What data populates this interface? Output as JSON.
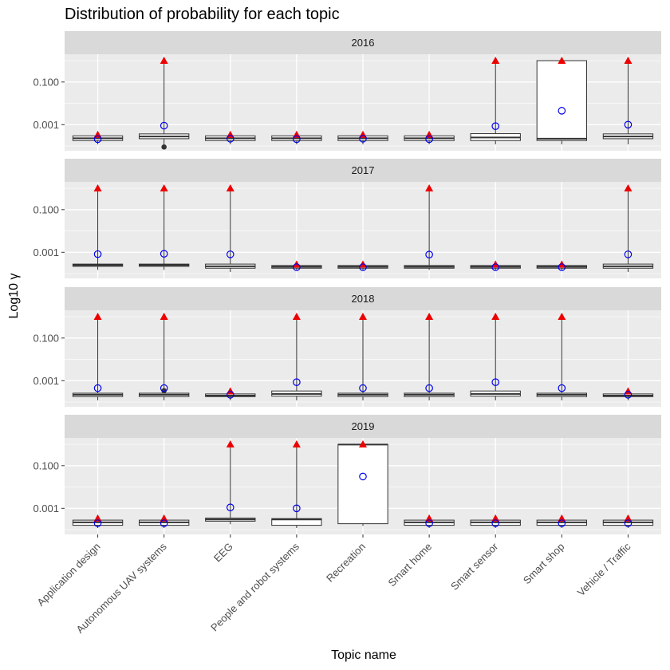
{
  "chart_data": {
    "type": "boxplot",
    "title": "Distribution of probability for each topic",
    "xlabel": "Topic name",
    "ylabel": "Log10 γ",
    "y_scale": "log10",
    "y_range": [
      6e-05,
      2.0
    ],
    "y_ticks": [
      {
        "value": 0.1,
        "label": "0.100"
      },
      {
        "value": 0.001,
        "label": "0.001"
      }
    ],
    "categories": [
      "Application design",
      "Autonomous UAV systems",
      "EEG",
      "People and robot systems",
      "Recreation",
      "Smart home",
      "Smart sensor",
      "Smart shop",
      "Vehicle / Traffic"
    ],
    "legend": "none",
    "colors": {
      "panel_bg": "#ebebeb",
      "strip_bg": "#d9d9d9",
      "grid": "#ffffff",
      "box_fill": "#ffffff",
      "box_line": "#333333",
      "mean_marker": "#0000ee",
      "max_marker": "#ee0000",
      "outlier": "#333333"
    },
    "facets": [
      {
        "label": "2016",
        "boxes": [
          {
            "q1": 0.00018,
            "median": 0.00023,
            "q3": 0.0003,
            "whisker_low": 0.00012,
            "whisker_high": 0.00035,
            "mean": 0.00021,
            "max": 0.00034
          },
          {
            "q1": 0.00022,
            "median": 0.00028,
            "q3": 0.00037,
            "whisker_low": 0.00012,
            "whisker_high": 1.0,
            "mean": 0.0009,
            "max": 1.0,
            "outliers": [
              9e-05
            ]
          },
          {
            "q1": 0.00018,
            "median": 0.00023,
            "q3": 0.0003,
            "whisker_low": 0.00012,
            "whisker_high": 0.00035,
            "mean": 0.00022,
            "max": 0.00034
          },
          {
            "q1": 0.00018,
            "median": 0.00023,
            "q3": 0.0003,
            "whisker_low": 0.00012,
            "whisker_high": 0.00035,
            "mean": 0.00021,
            "max": 0.00034
          },
          {
            "q1": 0.00018,
            "median": 0.00023,
            "q3": 0.0003,
            "whisker_low": 0.00012,
            "whisker_high": 0.00035,
            "mean": 0.00022,
            "max": 0.00034
          },
          {
            "q1": 0.00018,
            "median": 0.00023,
            "q3": 0.0003,
            "whisker_low": 0.00012,
            "whisker_high": 0.00035,
            "mean": 0.00021,
            "max": 0.00034
          },
          {
            "q1": 0.00018,
            "median": 0.00025,
            "q3": 0.00038,
            "whisker_low": 0.00012,
            "whisker_high": 1.0,
            "mean": 0.00085,
            "max": 1.0
          },
          {
            "q1": 0.00018,
            "median": 0.00022,
            "q3": 1.0,
            "whisker_low": 0.00012,
            "whisker_high": 1.0,
            "mean": 0.0045,
            "max": 1.0
          },
          {
            "q1": 0.00022,
            "median": 0.00028,
            "q3": 0.00037,
            "whisker_low": 0.00012,
            "whisker_high": 1.0,
            "mean": 0.001,
            "max": 1.0
          }
        ]
      },
      {
        "label": "2017",
        "boxes": [
          {
            "q1": 0.00022,
            "median": 0.00025,
            "q3": 0.00028,
            "whisker_low": 0.00015,
            "whisker_high": 1.0,
            "mean": 0.00082,
            "max": 1.0
          },
          {
            "q1": 0.00022,
            "median": 0.00025,
            "q3": 0.00028,
            "whisker_low": 0.00015,
            "whisker_high": 1.0,
            "mean": 0.00085,
            "max": 1.0
          },
          {
            "q1": 0.00018,
            "median": 0.00022,
            "q3": 0.00028,
            "whisker_low": 0.00012,
            "whisker_high": 1.0,
            "mean": 0.0008,
            "max": 1.0
          },
          {
            "q1": 0.00018,
            "median": 0.00021,
            "q3": 0.00024,
            "whisker_low": 0.00015,
            "whisker_high": 0.00028,
            "mean": 0.0002,
            "max": 0.00027
          },
          {
            "q1": 0.00018,
            "median": 0.00021,
            "q3": 0.00024,
            "whisker_low": 0.00015,
            "whisker_high": 0.00028,
            "mean": 0.0002,
            "max": 0.00027
          },
          {
            "q1": 0.00018,
            "median": 0.00021,
            "q3": 0.00024,
            "whisker_low": 0.00015,
            "whisker_high": 1.0,
            "mean": 0.00078,
            "max": 1.0
          },
          {
            "q1": 0.00018,
            "median": 0.00021,
            "q3": 0.00024,
            "whisker_low": 0.00015,
            "whisker_high": 0.00028,
            "mean": 0.0002,
            "max": 0.00027
          },
          {
            "q1": 0.00018,
            "median": 0.00021,
            "q3": 0.00024,
            "whisker_low": 0.00015,
            "whisker_high": 0.00028,
            "mean": 0.0002,
            "max": 0.00027
          },
          {
            "q1": 0.00018,
            "median": 0.00022,
            "q3": 0.00028,
            "whisker_low": 0.00012,
            "whisker_high": 1.0,
            "mean": 0.0008,
            "max": 1.0
          }
        ]
      },
      {
        "label": "2018",
        "boxes": [
          {
            "q1": 0.00018,
            "median": 0.00022,
            "q3": 0.00026,
            "whisker_low": 0.00012,
            "whisker_high": 1.0,
            "mean": 0.00045,
            "max": 1.0
          },
          {
            "q1": 0.00018,
            "median": 0.00022,
            "q3": 0.00026,
            "whisker_low": 0.00012,
            "whisker_high": 1.0,
            "mean": 0.00045,
            "max": 1.0,
            "outliers": [
              0.00034
            ]
          },
          {
            "q1": 0.00018,
            "median": 0.0002,
            "q3": 0.00024,
            "whisker_low": 0.00012,
            "whisker_high": 0.00033,
            "mean": 0.00022,
            "max": 0.00032
          },
          {
            "q1": 0.00019,
            "median": 0.00024,
            "q3": 0.00033,
            "whisker_low": 0.00012,
            "whisker_high": 1.0,
            "mean": 0.00085,
            "max": 1.0
          },
          {
            "q1": 0.00018,
            "median": 0.00022,
            "q3": 0.00026,
            "whisker_low": 0.00012,
            "whisker_high": 1.0,
            "mean": 0.00045,
            "max": 1.0
          },
          {
            "q1": 0.00018,
            "median": 0.00022,
            "q3": 0.00026,
            "whisker_low": 0.00012,
            "whisker_high": 1.0,
            "mean": 0.00045,
            "max": 1.0
          },
          {
            "q1": 0.00019,
            "median": 0.00024,
            "q3": 0.00033,
            "whisker_low": 0.00012,
            "whisker_high": 1.0,
            "mean": 0.00085,
            "max": 1.0
          },
          {
            "q1": 0.00018,
            "median": 0.00022,
            "q3": 0.00026,
            "whisker_low": 0.00012,
            "whisker_high": 1.0,
            "mean": 0.00045,
            "max": 1.0
          },
          {
            "q1": 0.00018,
            "median": 0.0002,
            "q3": 0.00024,
            "whisker_low": 0.00012,
            "whisker_high": 0.00033,
            "mean": 0.00022,
            "max": 0.00032
          }
        ]
      },
      {
        "label": "2019",
        "boxes": [
          {
            "q1": 0.00016,
            "median": 0.00022,
            "q3": 0.00028,
            "whisker_low": 0.00012,
            "whisker_high": 0.00034,
            "mean": 0.0002,
            "max": 0.00034
          },
          {
            "q1": 0.00016,
            "median": 0.00022,
            "q3": 0.00028,
            "whisker_low": 0.00012,
            "whisker_high": 0.00034,
            "mean": 0.0002,
            "max": 0.00034
          },
          {
            "q1": 0.00025,
            "median": 0.0003,
            "q3": 0.00035,
            "whisker_low": 0.00018,
            "whisker_high": 1.0,
            "mean": 0.0011,
            "max": 1.0
          },
          {
            "q1": 0.00016,
            "median": 0.0003,
            "q3": 0.00033,
            "whisker_low": 0.00012,
            "whisker_high": 1.0,
            "mean": 0.001,
            "max": 1.0
          },
          {
            "q1": 0.00019,
            "median": 0.97,
            "q3": 1.0,
            "whisker_low": 0.00015,
            "whisker_high": 1.0,
            "mean": 0.031,
            "max": 1.0
          },
          {
            "q1": 0.00016,
            "median": 0.00022,
            "q3": 0.00028,
            "whisker_low": 0.00012,
            "whisker_high": 0.00034,
            "mean": 0.0002,
            "max": 0.00034
          },
          {
            "q1": 0.00016,
            "median": 0.00022,
            "q3": 0.00028,
            "whisker_low": 0.00012,
            "whisker_high": 0.00034,
            "mean": 0.0002,
            "max": 0.00034
          },
          {
            "q1": 0.00016,
            "median": 0.00022,
            "q3": 0.00028,
            "whisker_low": 0.00012,
            "whisker_high": 0.00034,
            "mean": 0.0002,
            "max": 0.00034
          },
          {
            "q1": 0.00016,
            "median": 0.00022,
            "q3": 0.00028,
            "whisker_low": 0.00012,
            "whisker_high": 0.00034,
            "mean": 0.0002,
            "max": 0.00034
          }
        ]
      }
    ]
  }
}
